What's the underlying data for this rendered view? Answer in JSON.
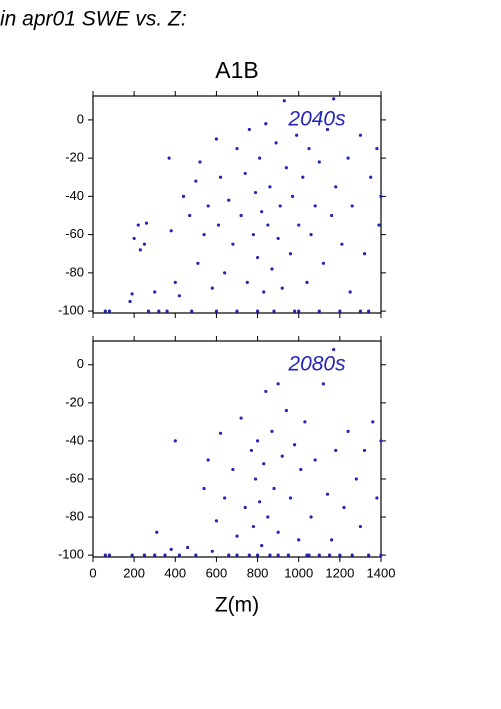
{
  "title": "in apr01 SWE vs. Z:",
  "subtitle": "A1B",
  "chart_data": [
    {
      "type": "scatter",
      "annotation": "2040s",
      "color": "#2424b8",
      "xlim": [
        0,
        1400
      ],
      "ylim": [
        -101,
        12.5
      ],
      "yticks": [
        -100,
        -80,
        -60,
        -40,
        -20,
        0
      ],
      "x": [
        60,
        80,
        180,
        190,
        200,
        220,
        230,
        250,
        260,
        270,
        300,
        320,
        360,
        370,
        380,
        400,
        420,
        440,
        470,
        480,
        500,
        510,
        520,
        540,
        560,
        580,
        600,
        600,
        610,
        620,
        640,
        660,
        680,
        700,
        700,
        720,
        740,
        750,
        760,
        780,
        790,
        800,
        800,
        810,
        820,
        830,
        840,
        850,
        860,
        870,
        880,
        890,
        900,
        910,
        920,
        930,
        940,
        960,
        970,
        980,
        990,
        1000,
        1020,
        1040,
        1050,
        1060,
        1080,
        1100,
        1100,
        1120,
        1140,
        1160,
        1170,
        1180,
        1200,
        1210,
        1240,
        1250,
        1260,
        1300,
        1320,
        1340,
        1350,
        1380,
        1390,
        1400,
        1000,
        1300
      ],
      "values": [
        -100,
        -100,
        -95,
        -91,
        -62,
        -55,
        -68,
        -65,
        -54,
        -100,
        -90,
        -100,
        -100,
        -20,
        -58,
        -85,
        -92,
        -40,
        -50,
        -100,
        -32,
        -75,
        -22,
        -60,
        -45,
        -88,
        -100,
        -10,
        -55,
        -30,
        -80,
        -42,
        -65,
        -15,
        -100,
        -50,
        -28,
        -85,
        -5,
        -60,
        -38,
        -100,
        -72,
        -20,
        -48,
        -90,
        -2,
        -55,
        -35,
        -78,
        -100,
        -12,
        -62,
        -45,
        -88,
        10,
        -25,
        -70,
        -40,
        -100,
        -8,
        -55,
        -30,
        -85,
        -15,
        -60,
        -45,
        -100,
        -22,
        -75,
        -5,
        -50,
        11,
        -35,
        -100,
        -65,
        -20,
        -90,
        -45,
        -8,
        -70,
        -100,
        -30,
        -15,
        -55,
        -40,
        -100,
        -100
      ]
    },
    {
      "type": "scatter",
      "annotation": "2080s",
      "color": "#2424b8",
      "xlabel": "Z(m)",
      "xlim": [
        0,
        1400
      ],
      "ylim": [
        -101,
        12.5
      ],
      "yticks": [
        -100,
        -80,
        -60,
        -40,
        -20,
        0
      ],
      "xticks": [
        0,
        200,
        400,
        600,
        800,
        1000,
        1200,
        1400
      ],
      "x": [
        60,
        80,
        190,
        250,
        300,
        310,
        350,
        380,
        400,
        420,
        460,
        500,
        540,
        560,
        580,
        600,
        620,
        640,
        660,
        680,
        700,
        720,
        740,
        760,
        770,
        780,
        790,
        800,
        800,
        810,
        820,
        830,
        840,
        850,
        860,
        870,
        880,
        900,
        900,
        920,
        940,
        950,
        960,
        980,
        1000,
        1010,
        1030,
        1040,
        1060,
        1080,
        1100,
        1120,
        1140,
        1160,
        1170,
        1180,
        1200,
        1220,
        1240,
        1260,
        1280,
        1300,
        1320,
        1340,
        1360,
        1380,
        1400,
        1400,
        700,
        900,
        1150,
        1050
      ],
      "values": [
        -100,
        -100,
        -100,
        -100,
        -100,
        -88,
        -100,
        -97,
        -40,
        -100,
        -96,
        -100,
        -65,
        -50,
        -98,
        -82,
        -36,
        -70,
        -100,
        -55,
        -90,
        -28,
        -75,
        -100,
        -45,
        -85,
        -60,
        -100,
        -40,
        -72,
        -95,
        -52,
        -14,
        -80,
        -100,
        -35,
        -65,
        -10,
        -88,
        -48,
        -24,
        -100,
        -70,
        -42,
        -92,
        -55,
        -30,
        -100,
        -80,
        -50,
        -100,
        -10,
        -68,
        -92,
        8,
        -45,
        -100,
        -75,
        -35,
        -100,
        -60,
        -85,
        -45,
        -100,
        -30,
        -70,
        -40,
        -100,
        -100,
        -100,
        -100,
        -100
      ]
    }
  ]
}
